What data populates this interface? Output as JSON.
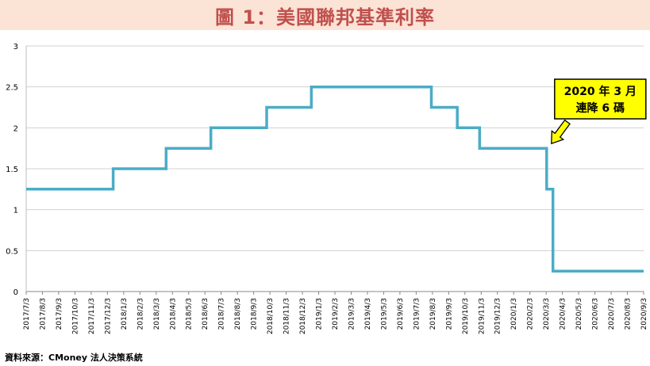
{
  "title": "圖 1：美國聯邦基準利率",
  "source": "資料來源：CMoney 法人決策系統",
  "colors": {
    "title_bg": "#fbe3d6",
    "title_text": "#c0504d",
    "line": "#4bacc6",
    "callout_bg": "#ffff00",
    "arrow": "#ffff00"
  },
  "chart_data": {
    "type": "line",
    "title": "",
    "xlabel": "",
    "ylabel": "",
    "ylim": [
      0,
      3
    ],
    "yticks": [
      "0",
      "0.5",
      "1",
      "1.5",
      "2",
      "2.5",
      "3"
    ],
    "grid": true,
    "categories": [
      "2017/7/3",
      "2017/8/3",
      "2017/9/3",
      "2017/10/3",
      "2017/11/3",
      "2017/12/3",
      "2018/1/3",
      "2018/2/3",
      "2018/3/3",
      "2018/4/3",
      "2018/5/3",
      "2018/6/3",
      "2018/7/3",
      "2018/8/3",
      "2018/9/3",
      "2018/10/3",
      "2018/11/3",
      "2018/12/3",
      "2019/1/3",
      "2019/2/3",
      "2019/3/3",
      "2019/4/3",
      "2019/5/3",
      "2019/6/3",
      "2019/7/3",
      "2019/8/3",
      "2019/9/3",
      "2019/10/3",
      "2019/11/3",
      "2019/12/3",
      "2020/1/3",
      "2020/2/3",
      "2020/3/3",
      "2020/4/3",
      "2020/5/3",
      "2020/6/3",
      "2020/7/3",
      "2020/8/3",
      "2020/9/3"
    ],
    "series": [
      {
        "points": [
          [
            "2017/7/3",
            1.25
          ],
          [
            "2017/12/14",
            1.25
          ],
          [
            "2017/12/14",
            1.5
          ],
          [
            "2018/3/22",
            1.5
          ],
          [
            "2018/3/22",
            1.75
          ],
          [
            "2018/6/14",
            1.75
          ],
          [
            "2018/6/14",
            2.0
          ],
          [
            "2018/9/27",
            2.0
          ],
          [
            "2018/9/27",
            2.25
          ],
          [
            "2018/12/20",
            2.25
          ],
          [
            "2018/12/20",
            2.5
          ],
          [
            "2019/8/1",
            2.5
          ],
          [
            "2019/8/1",
            2.25
          ],
          [
            "2019/9/19",
            2.25
          ],
          [
            "2019/9/19",
            2.0
          ],
          [
            "2019/10/31",
            2.0
          ],
          [
            "2019/10/31",
            1.75
          ],
          [
            "2020/3/4",
            1.75
          ],
          [
            "2020/3/4",
            1.25
          ],
          [
            "2020/3/16",
            1.25
          ],
          [
            "2020/3/16",
            0.25
          ],
          [
            "2020/9/3",
            0.25
          ]
        ]
      }
    ],
    "annotation": {
      "line1": "2020 年 3 月",
      "line2": "連降 6 碼",
      "target": [
        "2020/3/4",
        1.75
      ]
    }
  }
}
